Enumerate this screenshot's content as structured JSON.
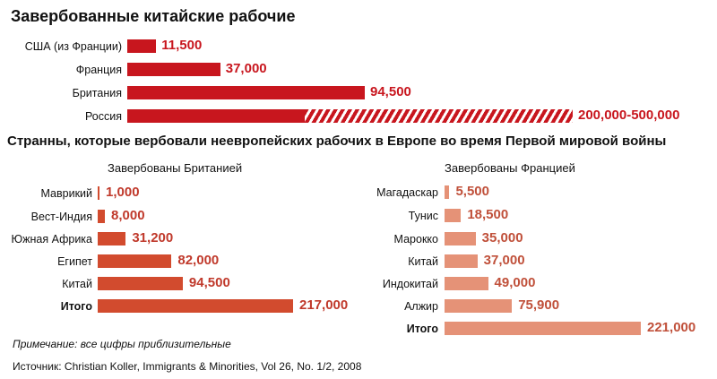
{
  "title": "Завербованные китайские рабочие",
  "subtitle": "Странны, которые вербовали неевропейских рабочих в Европе  во время Первой мировой войны",
  "note": "Примечание: все цифры приблизительные",
  "source": "Источник: Christian Koller, Immigrants & Minorities, Vol 26, No. 1/2, 2008",
  "colors": {
    "chinese": "#c8161e",
    "britain": "#d24b2e",
    "france": "#e59277",
    "value_text_1": "#c8161e",
    "value_text_2": "#c0392b",
    "value_text_3": "#c0503a"
  },
  "chart_data": [
    {
      "type": "bar",
      "orientation": "horizontal",
      "title": "Завербованные китайские рабочие",
      "categories": [
        "США (из Франции)",
        "Франция",
        "Британия",
        "Россия"
      ],
      "values": [
        11500,
        37000,
        94500,
        200000
      ],
      "value_labels": [
        "11,500",
        "37,000",
        "94,500",
        "200,000-500,000"
      ],
      "range_upper": {
        "category": "Россия",
        "value": 500000
      }
    },
    {
      "type": "bar",
      "orientation": "horizontal",
      "title": "Завербованы Британией",
      "categories": [
        "Маврикий",
        "Вест-Индия",
        "Южная Африка",
        "Египет",
        "Китай",
        "Итого"
      ],
      "values": [
        1000,
        8000,
        31200,
        82000,
        94500,
        217000
      ],
      "value_labels": [
        "1,000",
        "8,000",
        "31,200",
        "82,000",
        "94,500",
        "217,000"
      ]
    },
    {
      "type": "bar",
      "orientation": "horizontal",
      "title": "Завербованы Францией",
      "categories": [
        "Магадаскар",
        "Тунис",
        "Марокко",
        "Китай",
        "Индокитай",
        "Алжир",
        "Итого"
      ],
      "values": [
        5500,
        18500,
        35000,
        37000,
        49000,
        75900,
        221000
      ],
      "value_labels": [
        "5,500",
        "18,500",
        "35,000",
        "37,000",
        "49,000",
        "75,900",
        "221,000"
      ]
    }
  ]
}
